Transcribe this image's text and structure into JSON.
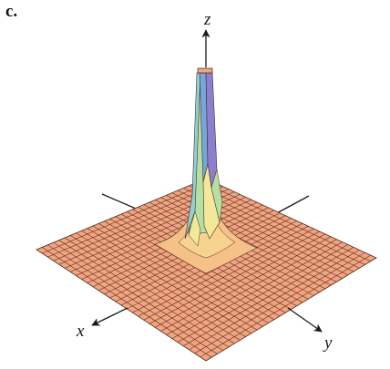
{
  "panel_label": "c.",
  "axes": {
    "x_label": "x",
    "y_label": "y",
    "z_label": "z"
  },
  "colors": {
    "surface_fill": "#f2a37f",
    "mesh_line": "#4a2b1e",
    "axis": "#1a1a1a",
    "peak_yellow": "#f3e79a",
    "peak_green": "#b6e0a3",
    "peak_cyan": "#8fd1d6",
    "peak_blue": "#76a6dc",
    "peak_purple": "#8c7fcf"
  },
  "surface": {
    "description_type": "3d-surface-spike",
    "grid_lines_per_side": 30
  }
}
